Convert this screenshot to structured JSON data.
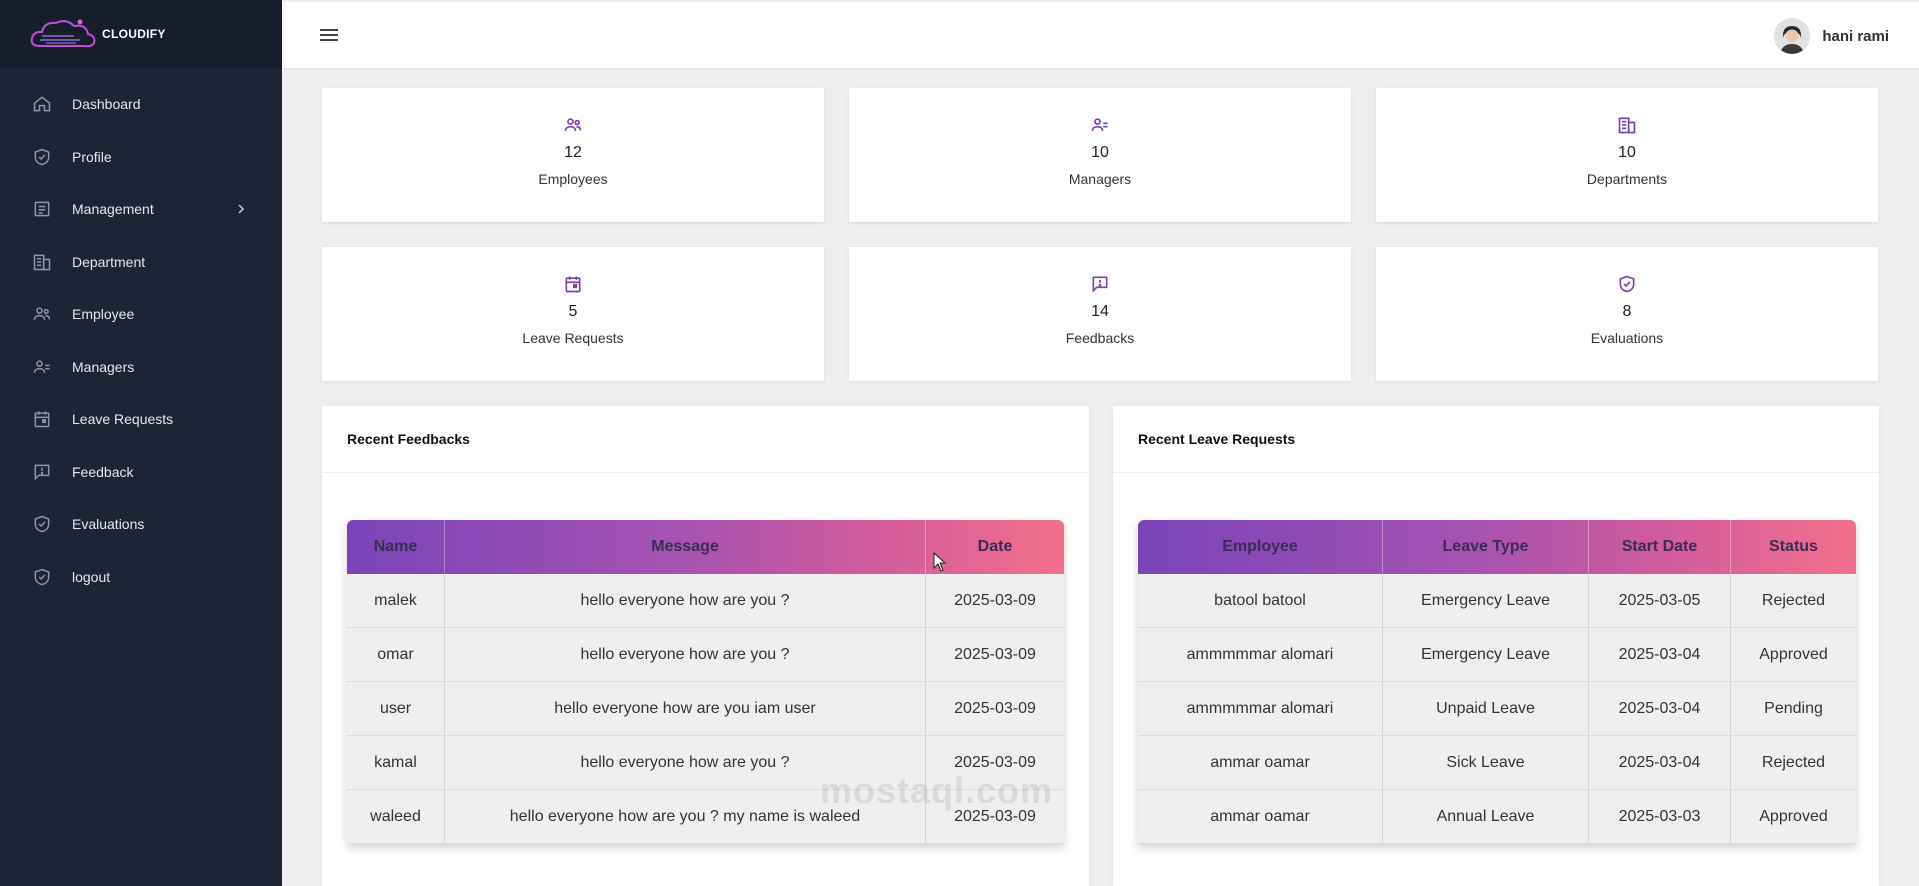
{
  "brand": {
    "name": "CLOUDIFY"
  },
  "sidebar": {
    "items": [
      {
        "label": "Dashboard",
        "icon": "home-icon"
      },
      {
        "label": "Profile",
        "icon": "shield-icon"
      },
      {
        "label": "Management",
        "icon": "list-icon"
      },
      {
        "label": "Department",
        "icon": "building-icon"
      },
      {
        "label": "Employee",
        "icon": "people-icon"
      },
      {
        "label": "Managers",
        "icon": "manager-icon"
      },
      {
        "label": "Leave Requests",
        "icon": "calendar-icon"
      },
      {
        "label": "Feedback",
        "icon": "feedback-icon"
      },
      {
        "label": "Evaluations",
        "icon": "shield-check-icon"
      },
      {
        "label": "logout",
        "icon": "shield-check-icon"
      }
    ]
  },
  "header": {
    "user_name": "hani rami"
  },
  "stats": [
    {
      "count": "12",
      "label": "Employees",
      "icon": "people-icon"
    },
    {
      "count": "10",
      "label": "Managers",
      "icon": "manager-icon"
    },
    {
      "count": "10",
      "label": "Departments",
      "icon": "building-icon"
    },
    {
      "count": "5",
      "label": "Leave Requests",
      "icon": "calendar-icon"
    },
    {
      "count": "14",
      "label": "Feedbacks",
      "icon": "feedback-icon"
    },
    {
      "count": "8",
      "label": "Evaluations",
      "icon": "shield-check-icon"
    }
  ],
  "feedbacks": {
    "title": "Recent Feedbacks",
    "columns": [
      "Name",
      "Message",
      "Date"
    ],
    "rows": [
      [
        "malek",
        "hello everyone how are you ?",
        "2025-03-09"
      ],
      [
        "omar",
        "hello everyone how are you ?",
        "2025-03-09"
      ],
      [
        "user",
        "hello everyone how are you iam user",
        "2025-03-09"
      ],
      [
        "kamal",
        "hello everyone how are you ?",
        "2025-03-09"
      ],
      [
        "waleed",
        "hello everyone how are you ? my name is waleed",
        "2025-03-09"
      ]
    ]
  },
  "leave_requests": {
    "title": "Recent Leave Requests",
    "columns": [
      "Employee",
      "Leave Type",
      "Start Date",
      "Status"
    ],
    "rows": [
      [
        "batool batool",
        "Emergency Leave",
        "2025-03-05",
        "Rejected"
      ],
      [
        "ammmmmar alomari",
        "Emergency Leave",
        "2025-03-04",
        "Approved"
      ],
      [
        "ammmmmar alomari",
        "Unpaid Leave",
        "2025-03-04",
        "Pending"
      ],
      [
        "ammar oamar",
        "Sick Leave",
        "2025-03-04",
        "Rejected"
      ],
      [
        "ammar oamar",
        "Annual Leave",
        "2025-03-03",
        "Approved"
      ]
    ]
  },
  "watermark": "mostaql.com",
  "colors": {
    "sidebar": "#1b2535",
    "accent": "#7b3fb5",
    "header_gradient_end": "#f3708c"
  }
}
